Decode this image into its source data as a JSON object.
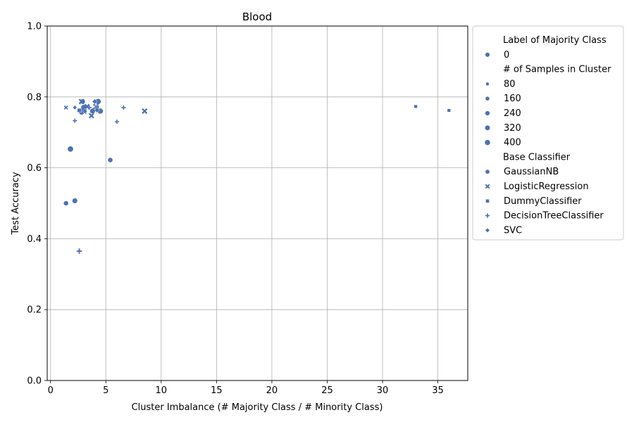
{
  "chart_data": {
    "type": "scatter",
    "title": "Blood",
    "xlabel": "Cluster Imbalance (# Majority Class / # Minority Class)",
    "ylabel": "Test Accuracy",
    "xlim": [
      -0.3,
      37.7
    ],
    "ylim": [
      0.0,
      1.0
    ],
    "xticks": [
      0,
      5,
      10,
      15,
      20,
      25,
      30,
      35
    ],
    "yticks": [
      0.0,
      0.2,
      0.4,
      0.6,
      0.8,
      1.0
    ],
    "xtick_labels": [
      "0",
      "5",
      "10",
      "15",
      "20",
      "25",
      "30",
      "35"
    ],
    "ytick_labels": [
      "0.0",
      "0.2",
      "0.4",
      "0.6",
      "0.8",
      "1.0"
    ],
    "grid": true,
    "color": "#4c72b0",
    "legend": {
      "placement": "outside-right",
      "hue_title": "Label of Majority Class",
      "hue_entries": [
        "0"
      ],
      "size_title": "# of Samples in Cluster",
      "size_entries": [
        "80",
        "160",
        "240",
        "320",
        "400"
      ],
      "style_title": "Base Classifier",
      "style_entries": [
        {
          "label": "GaussianNB",
          "marker": "circle"
        },
        {
          "label": "LogisticRegression",
          "marker": "x"
        },
        {
          "label": "DummyClassifier",
          "marker": "square"
        },
        {
          "label": "DecisionTreeClassifier",
          "marker": "plus"
        },
        {
          "label": "SVC",
          "marker": "diamond"
        }
      ]
    },
    "points": [
      {
        "x": 1.8,
        "y": 0.653,
        "n": 260,
        "classifier": "GaussianNB"
      },
      {
        "x": 1.4,
        "y": 0.5,
        "n": 150,
        "classifier": "GaussianNB"
      },
      {
        "x": 2.2,
        "y": 0.507,
        "n": 200,
        "classifier": "GaussianNB"
      },
      {
        "x": 5.4,
        "y": 0.622,
        "n": 150,
        "classifier": "GaussianNB"
      },
      {
        "x": 2.8,
        "y": 0.757,
        "n": 200,
        "classifier": "GaussianNB"
      },
      {
        "x": 3.0,
        "y": 0.77,
        "n": 240,
        "classifier": "GaussianNB"
      },
      {
        "x": 3.8,
        "y": 0.76,
        "n": 220,
        "classifier": "GaussianNB"
      },
      {
        "x": 4.3,
        "y": 0.787,
        "n": 250,
        "classifier": "GaussianNB"
      },
      {
        "x": 4.5,
        "y": 0.76,
        "n": 240,
        "classifier": "GaussianNB"
      },
      {
        "x": 2.9,
        "y": 0.787,
        "n": 170,
        "classifier": "GaussianNB"
      },
      {
        "x": 1.4,
        "y": 0.77,
        "n": 60,
        "classifier": "LogisticRegression"
      },
      {
        "x": 2.8,
        "y": 0.787,
        "n": 200,
        "classifier": "LogisticRegression"
      },
      {
        "x": 3.0,
        "y": 0.76,
        "n": 240,
        "classifier": "LogisticRegression"
      },
      {
        "x": 3.7,
        "y": 0.747,
        "n": 180,
        "classifier": "LogisticRegression"
      },
      {
        "x": 4.1,
        "y": 0.773,
        "n": 200,
        "classifier": "LogisticRegression"
      },
      {
        "x": 8.5,
        "y": 0.76,
        "n": 190,
        "classifier": "LogisticRegression"
      },
      {
        "x": 3.3,
        "y": 0.773,
        "n": 160,
        "classifier": "LogisticRegression"
      },
      {
        "x": 33.0,
        "y": 0.773,
        "n": 70,
        "classifier": "DummyClassifier"
      },
      {
        "x": 36.0,
        "y": 0.762,
        "n": 70,
        "classifier": "DummyClassifier"
      },
      {
        "x": 2.6,
        "y": 0.762,
        "n": 150,
        "classifier": "DummyClassifier"
      },
      {
        "x": 4.2,
        "y": 0.77,
        "n": 160,
        "classifier": "DummyClassifier"
      },
      {
        "x": 2.2,
        "y": 0.733,
        "n": 80,
        "classifier": "DecisionTreeClassifier"
      },
      {
        "x": 2.6,
        "y": 0.365,
        "n": 180,
        "classifier": "DecisionTreeClassifier"
      },
      {
        "x": 6.0,
        "y": 0.73,
        "n": 80,
        "classifier": "DecisionTreeClassifier"
      },
      {
        "x": 6.6,
        "y": 0.77,
        "n": 100,
        "classifier": "DecisionTreeClassifier"
      },
      {
        "x": 3.5,
        "y": 0.77,
        "n": 110,
        "classifier": "DecisionTreeClassifier"
      },
      {
        "x": 2.2,
        "y": 0.77,
        "n": 80,
        "classifier": "SVC"
      },
      {
        "x": 3.1,
        "y": 0.76,
        "n": 150,
        "classifier": "SVC"
      },
      {
        "x": 4.0,
        "y": 0.787,
        "n": 160,
        "classifier": "SVC"
      },
      {
        "x": 4.2,
        "y": 0.763,
        "n": 180,
        "classifier": "SVC"
      }
    ]
  }
}
